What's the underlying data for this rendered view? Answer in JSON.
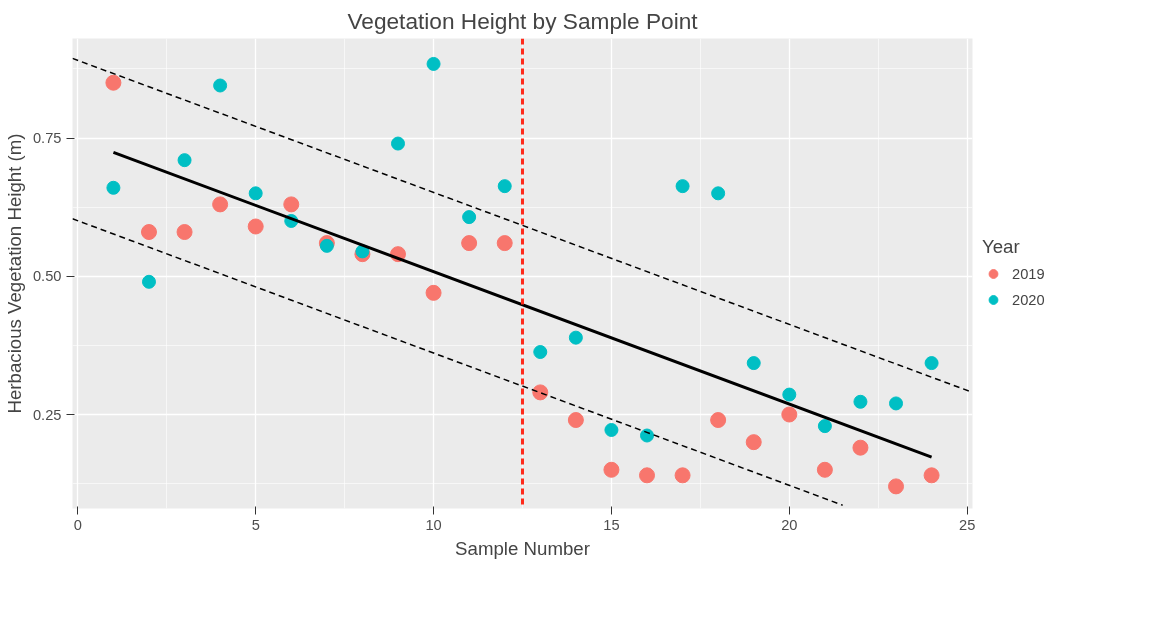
{
  "chart_data": {
    "type": "scatter",
    "title": "Vegetation Height by Sample Point",
    "xlabel": "Sample Number",
    "ylabel": "Herbacious Vegetation Height (m)",
    "legend_title": "Year",
    "xlim": [
      -0.15,
      25.15
    ],
    "ylim": [
      0.08,
      0.93
    ],
    "xticks": [
      0,
      5,
      10,
      15,
      20,
      25
    ],
    "yticks": [
      0.25,
      {
        "value": 0.5,
        "label": "0.50"
      },
      0.75
    ],
    "grid": true,
    "legend": "right",
    "marker": "circle",
    "x": [
      1,
      2,
      3,
      4,
      5,
      6,
      7,
      8,
      9,
      10,
      11,
      12,
      13,
      14,
      15,
      16,
      17,
      18,
      19,
      20,
      21,
      22,
      23,
      24
    ],
    "series": [
      {
        "name": "2019",
        "color": "#f8766d",
        "values": [
          0.85,
          0.58,
          0.58,
          0.63,
          0.59,
          0.63,
          0.56,
          0.54,
          0.54,
          0.47,
          0.56,
          0.56,
          0.29,
          0.24,
          0.15,
          0.14,
          0.14,
          0.24,
          0.2,
          0.25,
          0.15,
          0.19,
          0.12,
          0.14
        ]
      },
      {
        "name": "2020",
        "color": "#00bfc4",
        "values": [
          0.66,
          0.49,
          0.71,
          0.845,
          0.65,
          0.6,
          0.555,
          0.545,
          0.74,
          0.884,
          0.607,
          0.663,
          0.363,
          0.389,
          0.222,
          0.212,
          0.663,
          0.65,
          0.343,
          0.286,
          0.229,
          0.273,
          0.27,
          0.343
        ]
      },
      {
        "type": "line",
        "color": "#000000",
        "line_style": "solid",
        "marker": "none",
        "x": [
          1,
          24
        ],
        "values": [
          0.724,
          0.173
        ]
      },
      {
        "type": "line",
        "color": "#000000",
        "line_style": "dashed",
        "marker": "none",
        "x": [
          -0.15,
          25.15
        ],
        "values": [
          0.894,
          0.29
        ]
      },
      {
        "type": "line",
        "color": "#000000",
        "line_style": "dashed",
        "marker": "none",
        "x": [
          -0.15,
          21.5
        ],
        "values": [
          0.604,
          0.086
        ]
      }
    ],
    "ref_lines": [
      {
        "axis": "x",
        "value": 12.5,
        "color": "#ff2a1a",
        "line_style": "dashed"
      }
    ]
  }
}
